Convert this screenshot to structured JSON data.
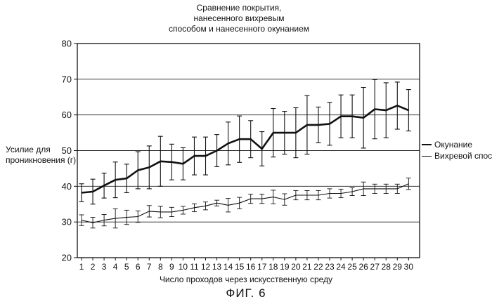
{
  "chart_data": {
    "type": "line",
    "title_lines": [
      "Сравнение покрытия,",
      "нанесенного вихревым",
      "способом и нанесенного окунанием"
    ],
    "ylabel_lines": [
      "Усилие для",
      "проникновения (г)"
    ],
    "xlabel": "Число проходов через искусственную среду",
    "ylim": [
      20,
      80
    ],
    "yticks": [
      20,
      30,
      40,
      50,
      60,
      70,
      80
    ],
    "grid": "horizontal",
    "legend_position": "right",
    "x": [
      1,
      2,
      3,
      4,
      5,
      6,
      7,
      8,
      9,
      10,
      11,
      12,
      13,
      14,
      15,
      16,
      17,
      18,
      19,
      20,
      21,
      22,
      23,
      24,
      25,
      26,
      27,
      28,
      29,
      30
    ],
    "series": [
      {
        "name": "Окунание",
        "style": "thick",
        "values": [
          38.2,
          38.5,
          40.2,
          41.8,
          42.2,
          44.5,
          45.3,
          47.0,
          46.8,
          46.3,
          48.5,
          48.5,
          50.0,
          52.0,
          53.2,
          53.2,
          50.5,
          55.0,
          55.0,
          55.0,
          57.2,
          57.2,
          57.5,
          59.6,
          59.6,
          59.2,
          61.6,
          61.3,
          62.6,
          61.3
        ],
        "errors": [
          2.5,
          3.5,
          3.5,
          5.0,
          4.0,
          5.2,
          6.0,
          7.0,
          5.0,
          4.5,
          5.3,
          5.3,
          4.5,
          6.0,
          6.5,
          5.2,
          4.8,
          6.8,
          6.0,
          7.0,
          8.2,
          5.0,
          6.0,
          6.0,
          6.0,
          8.5,
          8.3,
          7.7,
          6.6,
          5.8
        ]
      },
      {
        "name": "Вихревой способ",
        "style": "thin",
        "values": [
          30.5,
          29.8,
          30.5,
          31.0,
          31.3,
          31.5,
          33.0,
          32.8,
          32.8,
          33.3,
          34.0,
          34.5,
          35.3,
          34.7,
          35.3,
          36.5,
          36.5,
          37.0,
          36.3,
          37.5,
          37.5,
          37.5,
          38.0,
          38.0,
          38.5,
          39.3,
          39.3,
          39.3,
          39.3,
          40.7
        ]
      }
    ]
  },
  "errorbars_thin": [
    1.5,
    1.5,
    1.6,
    2.7,
    2.0,
    1.6,
    1.6,
    1.6,
    1.3,
    1.1,
    1.1,
    1.1,
    0.8,
    1.9,
    1.6,
    1.3,
    1.3,
    1.9,
    1.6,
    1.3,
    1.3,
    1.3,
    1.3,
    1.2,
    1.1,
    1.9,
    1.3,
    1.3,
    1.3,
    1.6
  ],
  "figure_caption": "ФИГ. 6"
}
